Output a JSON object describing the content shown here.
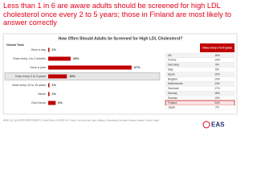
{
  "header": {
    "title": "Less than 1 in 6 are aware adults should be screened for high LDL cholesterol once every 2 to 5 years; those in Finland are most likely to answer correctly"
  },
  "chart_data": {
    "type": "bar",
    "orientation": "horizontal",
    "title": "How Often Should Adults be Screened for High LDL Cholesterol?",
    "subtitle": "Global Total",
    "categories": [
      "Once a day",
      "Once every 1 to 2 months",
      "Once a year",
      "Once every 2 to 5 years",
      "Once every 10 to 15 years",
      "Never",
      "Don't know"
    ],
    "values": [
      1,
      18,
      67,
      15,
      1,
      1,
      6
    ],
    "value_labels": [
      "1%",
      "18%",
      "67%",
      "15%",
      "1%",
      "1%",
      "6%"
    ],
    "color": "#c00000",
    "highlight": "Once every 2 to 5 years"
  },
  "table": {
    "header": "Once every 2 to 5 years",
    "rows": [
      [
        "UK",
        "16%"
      ],
      [
        "France",
        "14%"
      ],
      [
        "Germany",
        "9%"
      ],
      [
        "Italy",
        "8%"
      ],
      [
        "Spain",
        "10%"
      ],
      [
        "Belgium",
        "10%"
      ],
      [
        "Netherlands",
        "13%"
      ],
      [
        "Denmark",
        "17%"
      ],
      [
        "Norway",
        "18%"
      ],
      [
        "Sweden",
        "19%"
      ],
      [
        "Finland",
        "24%"
      ],
      [
        "Japan",
        "2%"
      ]
    ],
    "highlight": "Finland"
  },
  "footer": {
    "note": "BASE: ALL QUALIFIED RESPONDENTS; Global Total (n=12,000); UK, France, Germany, Italy, Spain, Belgium, Netherlands, Denmark, Norway, Sweden, Finland, Japan",
    "logo": "EAS"
  }
}
